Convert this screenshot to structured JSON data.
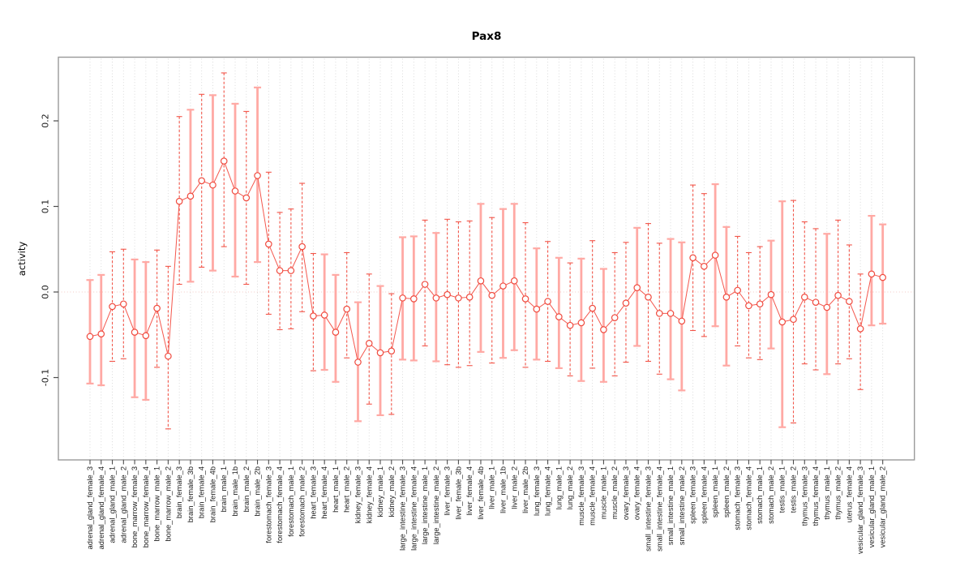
{
  "chart_data": {
    "type": "scatter",
    "title": "Pax8",
    "xlabel": "",
    "ylabel": "activity",
    "yticks": [
      -0.1,
      0.0,
      0.1,
      0.2
    ],
    "ylim": [
      -0.197,
      0.273
    ],
    "grid": "vertical dotted line per category; horizontal dotted line at y=0 only",
    "legend": "none",
    "point_marker": "open circle, connected by line, with error bars",
    "categories": [
      "adrenal_gland_female_3",
      "adrenal_gland_female_4",
      "adrenal_gland_male_1",
      "adrenal_gland_male_2",
      "bone_marrow_female_3",
      "bone_marrow_female_4",
      "bone_marrow_male_1",
      "bone_marrow_male_2",
      "brain_female_3",
      "brain_female_3b",
      "brain_female_4",
      "brain_female_4b",
      "brain_male_1",
      "brain_male_1b",
      "brain_male_2",
      "brain_male_2b",
      "forestomach_female_3",
      "forestomach_female_4",
      "forestomach_male_1",
      "forestomach_male_2",
      "heart_female_3",
      "heart_female_4",
      "heart_male_1",
      "heart_male_2",
      "kidney_female_3",
      "kidney_female_4",
      "kidney_male_1",
      "kidney_male_2",
      "large_intestine_female_3",
      "large_intestine_female_4",
      "large_intestine_male_1",
      "large_intestine_male_2",
      "liver_female_3",
      "liver_female_3b",
      "liver_female_4",
      "liver_female_4b",
      "liver_male_1",
      "liver_male_1b",
      "liver_male_2",
      "liver_male_2b",
      "lung_female_3",
      "lung_female_4",
      "lung_male_1",
      "lung_male_2",
      "muscle_female_3",
      "muscle_female_4",
      "muscle_male_1",
      "muscle_male_2",
      "ovary_female_3",
      "ovary_female_4",
      "small_intestine_female_3",
      "small_intestine_female_4",
      "small_intestine_male_1",
      "small_intestine_male_2",
      "spleen_female_3",
      "spleen_female_4",
      "spleen_male_1",
      "spleen_male_2",
      "stomach_female_3",
      "stomach_female_4",
      "stomach_male_1",
      "stomach_male_2",
      "testis_male_1",
      "testis_male_2",
      "thymus_female_3",
      "thymus_female_4",
      "thymus_male_1",
      "thymus_male_2",
      "uterus_female_4",
      "vesicular_gland_female_3",
      "vesicular_gland_male_1",
      "vesicular_gland_male_2"
    ],
    "values": [
      -0.052,
      -0.049,
      -0.017,
      -0.014,
      -0.047,
      -0.051,
      -0.019,
      -0.075,
      0.106,
      0.112,
      0.13,
      0.125,
      0.153,
      0.118,
      0.11,
      0.136,
      0.056,
      0.025,
      0.025,
      0.053,
      -0.028,
      -0.027,
      -0.047,
      -0.02,
      -0.082,
      -0.06,
      -0.071,
      -0.069,
      -0.007,
      -0.008,
      0.009,
      -0.007,
      -0.003,
      -0.007,
      -0.006,
      0.013,
      -0.004,
      0.007,
      0.013,
      -0.008,
      -0.02,
      -0.011,
      -0.029,
      -0.039,
      -0.036,
      -0.019,
      -0.044,
      -0.03,
      -0.013,
      0.005,
      -0.006,
      -0.025,
      -0.025,
      -0.034,
      0.04,
      0.03,
      0.043,
      -0.006,
      0.002,
      -0.016,
      -0.014,
      -0.003,
      -0.035,
      -0.032,
      -0.006,
      -0.012,
      -0.018,
      -0.004,
      -0.011,
      -0.043,
      0.021,
      0.017
    ],
    "ci_low": [
      -0.107,
      -0.109,
      -0.081,
      -0.078,
      -0.123,
      -0.126,
      -0.088,
      -0.16,
      0.009,
      0.012,
      0.029,
      0.025,
      0.053,
      0.018,
      0.009,
      0.035,
      -0.026,
      -0.044,
      -0.043,
      -0.023,
      -0.092,
      -0.091,
      -0.105,
      -0.077,
      -0.151,
      -0.131,
      -0.144,
      -0.143,
      -0.079,
      -0.08,
      -0.063,
      -0.081,
      -0.085,
      -0.088,
      -0.086,
      -0.07,
      -0.083,
      -0.077,
      -0.068,
      -0.088,
      -0.079,
      -0.081,
      -0.089,
      -0.098,
      -0.104,
      -0.089,
      -0.105,
      -0.098,
      -0.082,
      -0.063,
      -0.081,
      -0.096,
      -0.102,
      -0.115,
      -0.045,
      -0.052,
      -0.04,
      -0.086,
      -0.063,
      -0.077,
      -0.079,
      -0.066,
      -0.158,
      -0.153,
      -0.084,
      -0.091,
      -0.096,
      -0.084,
      -0.078,
      -0.114,
      -0.039,
      -0.037
    ],
    "ci_high": [
      0.014,
      0.02,
      0.047,
      0.05,
      0.038,
      0.035,
      0.049,
      0.03,
      0.205,
      0.213,
      0.231,
      0.23,
      0.256,
      0.22,
      0.211,
      0.239,
      0.14,
      0.093,
      0.097,
      0.127,
      0.045,
      0.044,
      0.02,
      0.046,
      -0.012,
      0.021,
      0.007,
      -0.002,
      0.064,
      0.065,
      0.084,
      0.069,
      0.085,
      0.082,
      0.083,
      0.103,
      0.087,
      0.097,
      0.103,
      0.081,
      0.051,
      0.059,
      0.04,
      0.034,
      0.039,
      0.06,
      0.027,
      0.046,
      0.058,
      0.075,
      0.08,
      0.057,
      0.062,
      0.058,
      0.125,
      0.115,
      0.126,
      0.076,
      0.065,
      0.046,
      0.053,
      0.06,
      0.106,
      0.107,
      0.082,
      0.074,
      0.068,
      0.084,
      0.055,
      0.021,
      0.089,
      0.079
    ],
    "bar_styles": [
      "solid",
      "solid",
      "dashed",
      "dashed",
      "solid",
      "solid",
      "dashed",
      "dashed",
      "dashed",
      "solid",
      "dashed",
      "solid",
      "dashed",
      "solid",
      "dashed",
      "solid",
      "dashed",
      "dashed",
      "dashed",
      "dashed",
      "dashed",
      "solid",
      "solid",
      "dashed",
      "solid",
      "dashed",
      "solid",
      "dashed",
      "solid",
      "solid",
      "dashed",
      "solid",
      "dashed",
      "dashed",
      "dashed",
      "solid",
      "dashed",
      "solid",
      "solid",
      "dashed",
      "solid",
      "dashed",
      "solid",
      "dashed",
      "solid",
      "dashed",
      "solid",
      "dashed",
      "dashed",
      "solid",
      "dashed",
      "dashed",
      "solid",
      "solid",
      "dashed",
      "dashed",
      "solid",
      "solid",
      "dashed",
      "dashed",
      "dashed",
      "solid",
      "solid",
      "dashed",
      "dashed",
      "dashed",
      "solid",
      "dashed",
      "dashed",
      "dashed",
      "solid",
      "solid"
    ],
    "colors": {
      "point_red": "#f04a3e",
      "line_red": "#f4574d",
      "dashed_bar_red": "#f25549",
      "solid_bar_pink": "#ffa9a4",
      "zero_line": "#f3c9c4",
      "gridline": "#d6d6d6",
      "box_border": "#9a9a9a",
      "tick": "#4d4d4d",
      "text": "#1c1c1c"
    }
  }
}
